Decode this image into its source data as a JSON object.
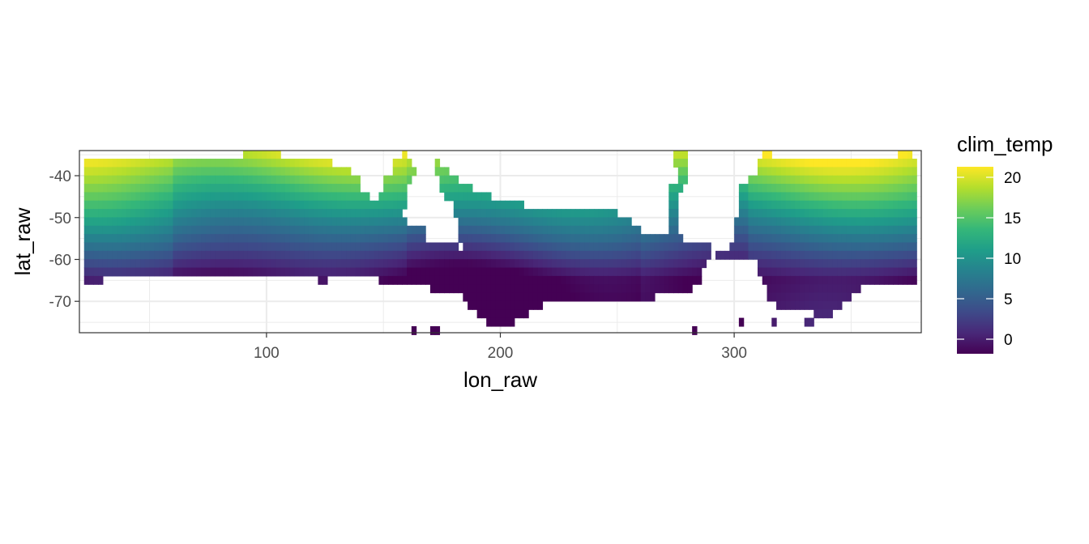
{
  "chart_data": {
    "type": "heatmap",
    "title": "",
    "xlabel": "lon_raw",
    "ylabel": "lat_raw",
    "xlim": [
      20,
      380
    ],
    "ylim": [
      -77.5,
      -34
    ],
    "x_ticks": [
      100,
      200,
      300
    ],
    "x_tick_labels": [
      "100",
      "200",
      "300"
    ],
    "y_ticks": [
      -40,
      -50,
      -60,
      -70
    ],
    "y_tick_labels": [
      "-40",
      "-50",
      "-60",
      "-70"
    ],
    "grid": true,
    "legend": {
      "title": "clim_temp",
      "placement": "right",
      "range": [
        -1.8,
        21.3
      ],
      "ticks": [
        0,
        5,
        10,
        15,
        20
      ],
      "tick_labels": [
        "0",
        "5",
        "10",
        "15",
        "20"
      ],
      "palette": "viridis",
      "colors": [
        "#440154",
        "#482878",
        "#3E4A89",
        "#31688E",
        "#26828E",
        "#1F9E89",
        "#35B779",
        "#6DCD59",
        "#B4DE2C",
        "#FDE725"
      ]
    },
    "grid_resolution_deg": 2,
    "value_model": "estimated climatological surface temperature: warm (~20) near -36 latitude, cooling southward to ~ -1.8 near the Antarctic margin",
    "rows": [
      {
        "lat": -35,
        "segments": [
          [
            90,
            106
          ],
          [
            158,
            160
          ],
          [
            274,
            280
          ],
          [
            312,
            316
          ],
          [
            370,
            376
          ]
        ]
      },
      {
        "lat": -37,
        "segments": [
          [
            22,
            128
          ],
          [
            154,
            162
          ],
          [
            172,
            174
          ],
          [
            274,
            280
          ],
          [
            310,
            378
          ]
        ]
      },
      {
        "lat": -39,
        "segments": [
          [
            22,
            136
          ],
          [
            154,
            164
          ],
          [
            172,
            178
          ],
          [
            276,
            280
          ],
          [
            310,
            378
          ]
        ]
      },
      {
        "lat": -41,
        "segments": [
          [
            22,
            140
          ],
          [
            150,
            162
          ],
          [
            174,
            182
          ],
          [
            276,
            280
          ],
          [
            306,
            378
          ]
        ]
      },
      {
        "lat": -43,
        "segments": [
          [
            22,
            140
          ],
          [
            150,
            160
          ],
          [
            174,
            188
          ],
          [
            272,
            278
          ],
          [
            302,
            378
          ]
        ]
      },
      {
        "lat": -45,
        "segments": [
          [
            22,
            144
          ],
          [
            148,
            160
          ],
          [
            176,
            196
          ],
          [
            272,
            276
          ],
          [
            302,
            378
          ]
        ]
      },
      {
        "lat": -47,
        "segments": [
          [
            22,
            160
          ],
          [
            180,
            210
          ],
          [
            272,
            276
          ],
          [
            302,
            378
          ]
        ]
      },
      {
        "lat": -49,
        "segments": [
          [
            22,
            158
          ],
          [
            180,
            250
          ],
          [
            272,
            276
          ],
          [
            302,
            378
          ]
        ]
      },
      {
        "lat": -51,
        "segments": [
          [
            22,
            160
          ],
          [
            182,
            256
          ],
          [
            272,
            276
          ],
          [
            300,
            378
          ]
        ]
      },
      {
        "lat": -53,
        "segments": [
          [
            22,
            168
          ],
          [
            182,
            260
          ],
          [
            272,
            276
          ],
          [
            300,
            378
          ]
        ]
      },
      {
        "lat": -55,
        "segments": [
          [
            22,
            168
          ],
          [
            182,
            278
          ],
          [
            300,
            378
          ]
        ]
      },
      {
        "lat": -57,
        "segments": [
          [
            22,
            182
          ],
          [
            184,
            290
          ],
          [
            298,
            378
          ]
        ]
      },
      {
        "lat": -59,
        "segments": [
          [
            22,
            290
          ],
          [
            292,
            378
          ]
        ]
      },
      {
        "lat": -61,
        "segments": [
          [
            22,
            288
          ],
          [
            310,
            378
          ]
        ]
      },
      {
        "lat": -63,
        "segments": [
          [
            22,
            286
          ],
          [
            310,
            378
          ]
        ]
      },
      {
        "lat": -65,
        "segments": [
          [
            22,
            30
          ],
          [
            122,
            126
          ],
          [
            148,
            286
          ],
          [
            312,
            378
          ]
        ]
      },
      {
        "lat": -67,
        "segments": [
          [
            170,
            282
          ],
          [
            314,
            354
          ]
        ]
      },
      {
        "lat": -69,
        "segments": [
          [
            184,
            266
          ],
          [
            314,
            350
          ]
        ]
      },
      {
        "lat": -71,
        "segments": [
          [
            186,
            218
          ],
          [
            318,
            346
          ]
        ]
      },
      {
        "lat": -73,
        "segments": [
          [
            190,
            212
          ],
          [
            334,
            342
          ]
        ]
      },
      {
        "lat": -75,
        "segments": [
          [
            194,
            206
          ],
          [
            302,
            304
          ],
          [
            316,
            318
          ],
          [
            330,
            334
          ]
        ]
      },
      {
        "lat": -77,
        "segments": [
          [
            162,
            164
          ],
          [
            170,
            174
          ],
          [
            282,
            284
          ]
        ]
      }
    ]
  }
}
